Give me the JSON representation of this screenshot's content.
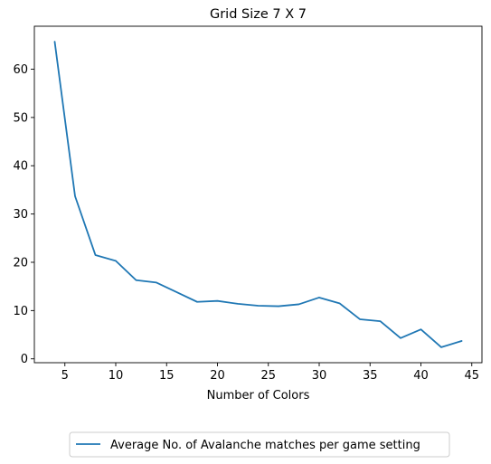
{
  "chart_data": {
    "type": "line",
    "title": "Grid Size 7 X 7",
    "xlabel": "Number of Colors",
    "ylabel": "",
    "xlim": [
      2.0,
      46.0
    ],
    "ylim": [
      -0.8,
      68.9
    ],
    "xticks": [
      5,
      10,
      15,
      20,
      25,
      30,
      35,
      40,
      45
    ],
    "yticks": [
      0,
      10,
      20,
      30,
      40,
      50,
      60
    ],
    "grid": false,
    "legend_position": "below",
    "series": [
      {
        "name": "Average No. of Avalanche matches per game setting",
        "color": "#1f77b4",
        "x": [
          4,
          6,
          8,
          10,
          12,
          14,
          16,
          18,
          20,
          22,
          24,
          26,
          28,
          30,
          32,
          34,
          36,
          38,
          40,
          42,
          44
        ],
        "y": [
          65.7,
          33.7,
          21.5,
          20.3,
          16.3,
          15.8,
          13.8,
          11.8,
          12.0,
          11.4,
          11.0,
          10.9,
          11.3,
          12.7,
          11.5,
          8.2,
          7.8,
          4.3,
          6.1,
          2.4,
          3.7
        ]
      }
    ]
  }
}
